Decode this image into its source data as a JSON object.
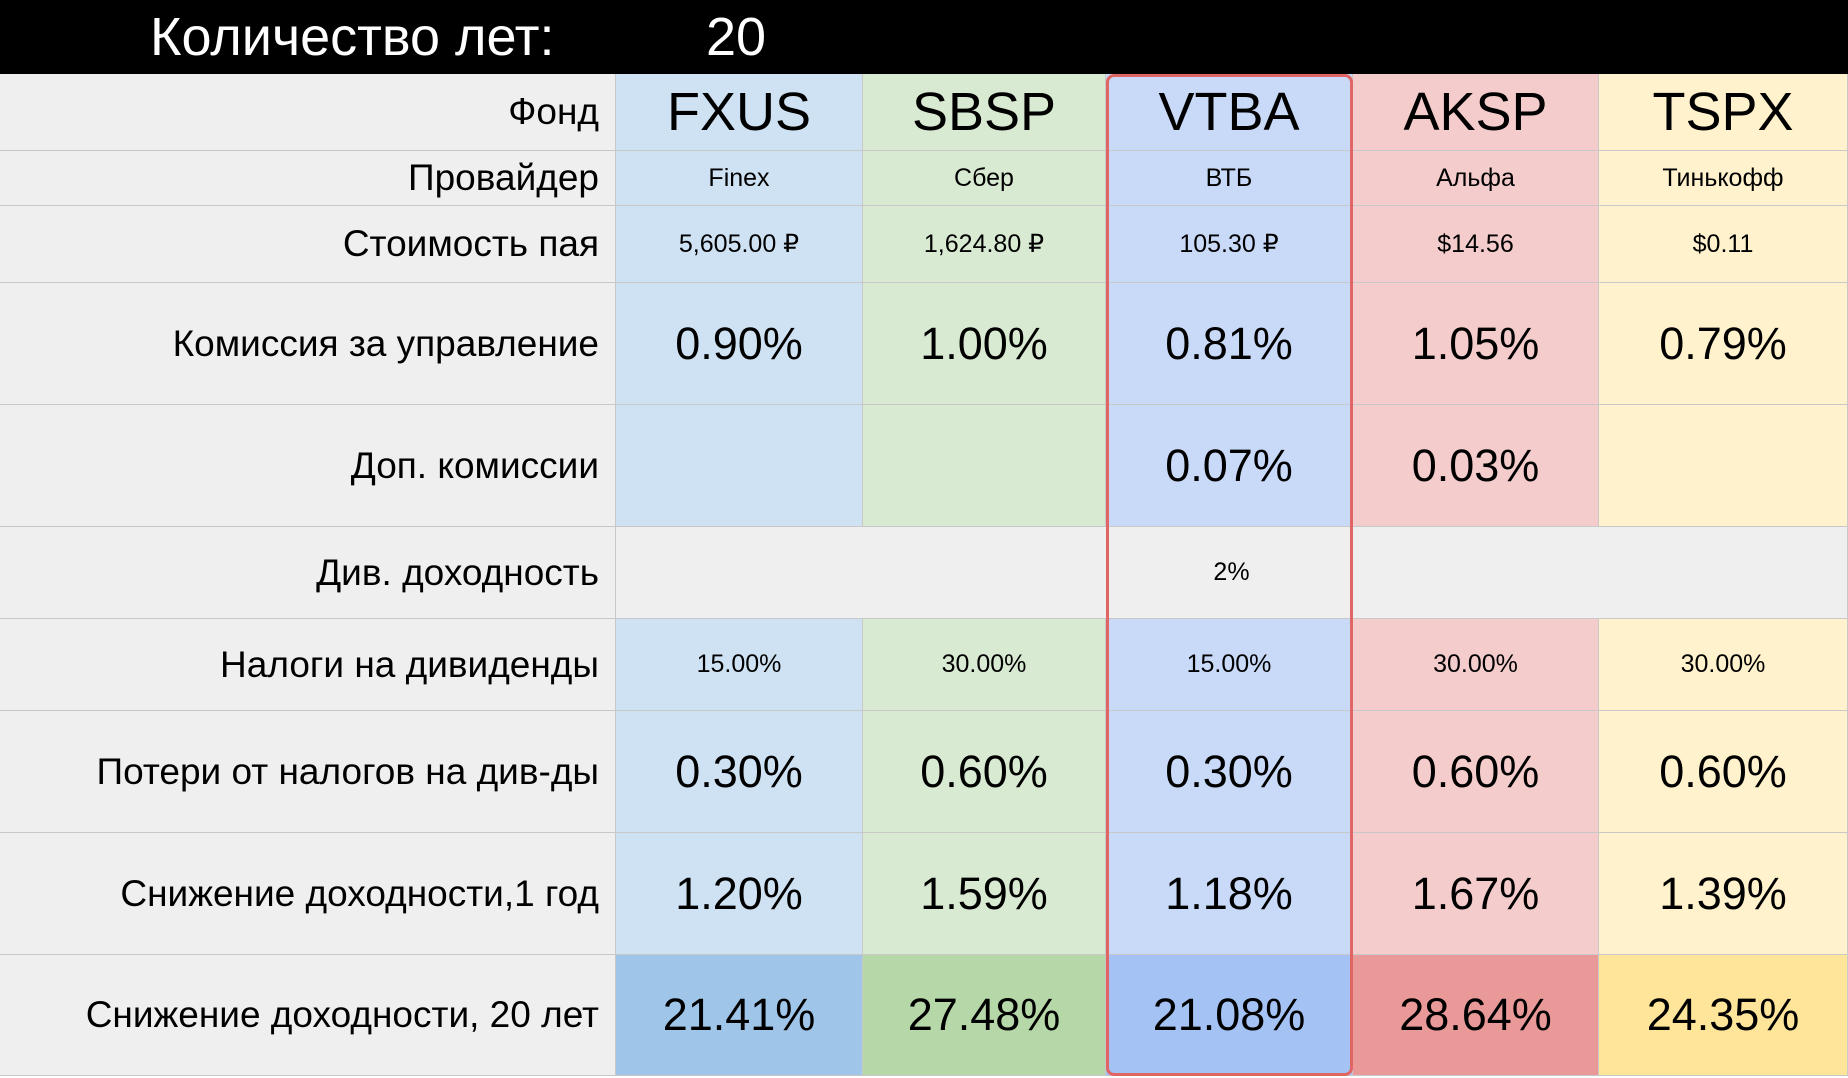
{
  "header": {
    "label": "Количество лет:",
    "value": "20"
  },
  "table": {
    "row_labels": [
      "Фонд",
      "Провайдер",
      "Стоимость пая",
      "Комиссия за управление",
      "Доп. комиссии",
      "Див. доходность",
      "Налоги на дивиденды",
      "Потери от налогов на див-ды",
      "Снижение доходности,1 год",
      "Снижение доходности, 20 лет"
    ],
    "div_yield": "2%",
    "funds": [
      {
        "ticker": "FXUS",
        "provider": "Finex",
        "price": "5,605.00 ₽",
        "mgmt_fee": "0.90%",
        "div_tax": "15.00%",
        "div_tax_loss": "0.30%",
        "reduction_1y": "1.20%",
        "reduction_20y": "21.41%"
      },
      {
        "ticker": "SBSP",
        "provider": "Сбер",
        "price": "1,624.80 ₽",
        "mgmt_fee": "1.00%",
        "div_tax": "30.00%",
        "div_tax_loss": "0.60%",
        "reduction_1y": "1.59%",
        "reduction_20y": "27.48%"
      },
      {
        "ticker": "VTBA",
        "provider": "ВТБ",
        "price": "105.30 ₽",
        "mgmt_fee": "0.81%",
        "extra_fee": "0.07%",
        "div_tax": "15.00%",
        "div_tax_loss": "0.30%",
        "reduction_1y": "1.18%",
        "reduction_20y": "21.08%"
      },
      {
        "ticker": "AKSP",
        "provider": "Альфа",
        "price": "$14.56",
        "mgmt_fee": "1.05%",
        "extra_fee": "0.03%",
        "div_tax": "30.00%",
        "div_tax_loss": "0.60%",
        "reduction_1y": "1.67%",
        "reduction_20y": "28.64%"
      },
      {
        "ticker": "TSPX",
        "provider": "Тинькофф",
        "price": "$0.11",
        "mgmt_fee": "0.79%",
        "div_tax": "30.00%",
        "div_tax_loss": "0.60%",
        "reduction_1y": "1.39%",
        "reduction_20y": "24.35%"
      }
    ]
  }
}
